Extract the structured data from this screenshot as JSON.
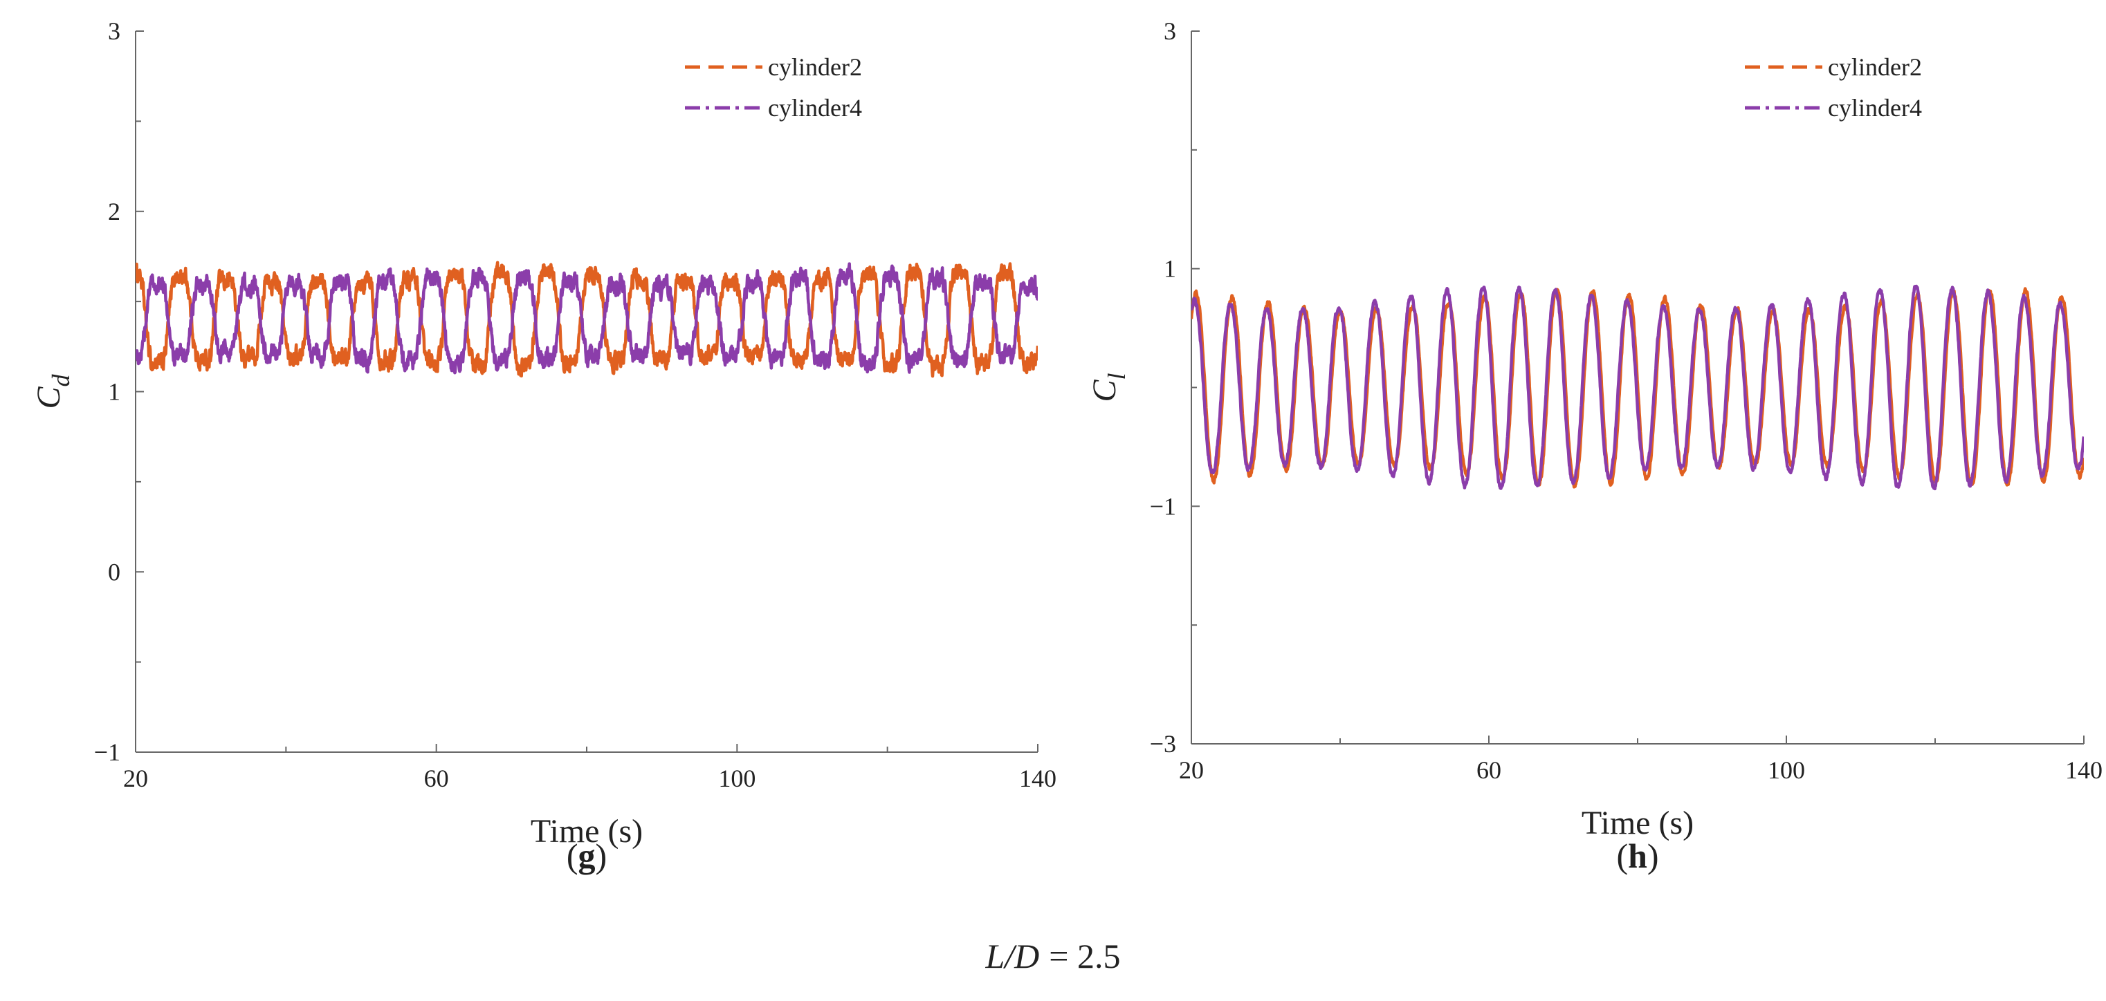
{
  "figure": {
    "caption_prefix": "L/D",
    "caption_value": "= 2.5",
    "colors": {
      "cylinder2": "#E06020",
      "cylinder4": "#8B3DAA",
      "axis": "#666666"
    }
  },
  "chart_data": [
    {
      "type": "line",
      "panel_label": "g",
      "panel_open": "(",
      "panel_close": ")",
      "xlabel": "Time",
      "xunit": "(s)",
      "ylabel_main": "C",
      "ylabel_sub": "d",
      "xlim": [
        20,
        140
      ],
      "ylim": [
        -1,
        3
      ],
      "xticks": [
        20,
        60,
        100,
        140
      ],
      "xtick_labels": [
        "20",
        "60",
        "100",
        "140"
      ],
      "yticks": [
        -1,
        0,
        1,
        2,
        3
      ],
      "ytick_labels": [
        "−1",
        "0",
        "1",
        "2",
        "3"
      ],
      "legend_position": "top-right",
      "series": [
        {
          "name": "cylinder2",
          "style": "dashed",
          "mean": 1.4,
          "amplitude": 0.27,
          "noise": 0.09,
          "period": 6.1,
          "phase": 0.0,
          "harmonic": 0.05
        },
        {
          "name": "cylinder4",
          "style": "dash-dot",
          "mean": 1.4,
          "amplitude": 0.25,
          "noise": 0.09,
          "period": 6.1,
          "phase": 3.1416,
          "harmonic": 0.05
        }
      ]
    },
    {
      "type": "line",
      "panel_label": "h",
      "panel_open": "(",
      "panel_close": ")",
      "xlabel": "Time",
      "xunit": "(s)",
      "ylabel_main": "C",
      "ylabel_sub": "l",
      "xlim": [
        20,
        140
      ],
      "ylim": [
        -3,
        3
      ],
      "xticks": [
        20,
        60,
        100,
        140
      ],
      "xtick_labels": [
        "20",
        "60",
        "100",
        "140"
      ],
      "yticks": [
        -3,
        -1,
        1,
        3
      ],
      "ytick_labels": [
        "−3",
        "−1",
        "1",
        "3"
      ],
      "legend_position": "top-right",
      "series": [
        {
          "name": "cylinder2",
          "style": "dashed",
          "mean": 0.0,
          "amplitude": 0.75,
          "noise": 0.04,
          "period": 4.85,
          "phase": 0.0,
          "harmonic": 0.02
        },
        {
          "name": "cylinder4",
          "style": "dash-dot",
          "mean": 0.0,
          "amplitude": 0.77,
          "noise": 0.04,
          "period": 4.85,
          "phase": 0.25,
          "harmonic": 0.02
        }
      ]
    }
  ]
}
